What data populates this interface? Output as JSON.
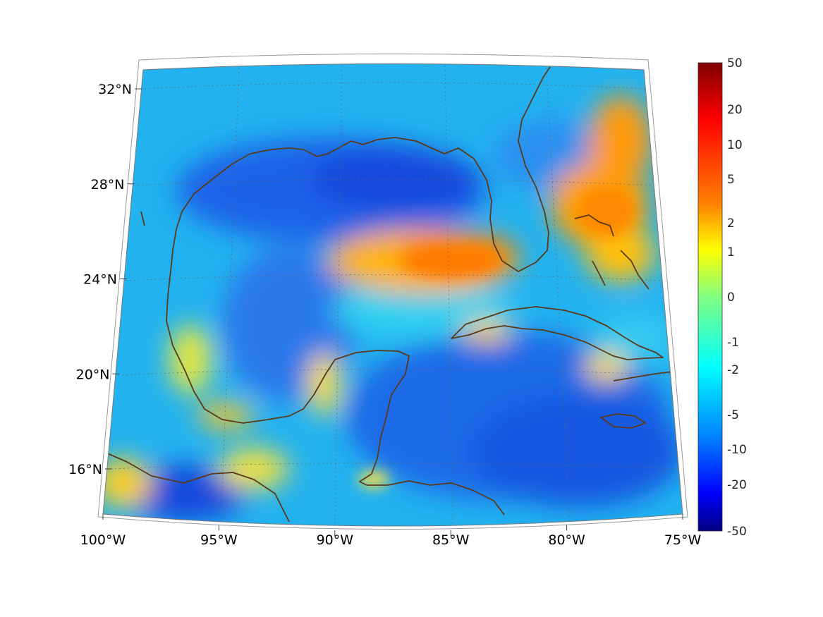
{
  "map": {
    "projection": "lambert-conic",
    "extent": {
      "lon": [
        -100,
        -75
      ],
      "lat": [
        14,
        32
      ]
    },
    "grid": true,
    "coastline_color": "#5a3a1a",
    "lat_ticks": [
      {
        "value": 32,
        "label": "32°N"
      },
      {
        "value": 28,
        "label": "28°N"
      },
      {
        "value": 24,
        "label": "24°N"
      },
      {
        "value": 20,
        "label": "20°N"
      },
      {
        "value": 16,
        "label": "16°N"
      }
    ],
    "lon_ticks": [
      {
        "value": -100,
        "label": "100°W"
      },
      {
        "value": -95,
        "label": "95°W"
      },
      {
        "value": -90,
        "label": "90°W"
      },
      {
        "value": -85,
        "label": "85°W"
      },
      {
        "value": -80,
        "label": "80°W"
      },
      {
        "value": -75,
        "label": "75°W"
      }
    ]
  },
  "colorbar": {
    "colormap": "jet",
    "orientation": "vertical",
    "placement": "right",
    "labels": [
      "50",
      "20",
      "10",
      "5",
      "2",
      "1",
      "0",
      "-1",
      "-2",
      "-5",
      "-10",
      "-20",
      "-50"
    ]
  }
}
